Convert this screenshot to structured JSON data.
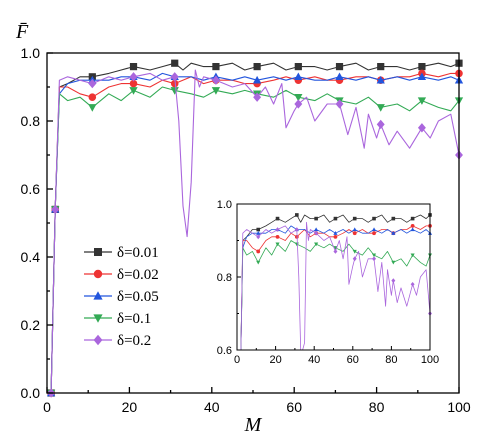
{
  "chart_data": {
    "type": "line",
    "title": "",
    "xlabel": "M",
    "ylabel": "F̄",
    "xlim": [
      0,
      100
    ],
    "ylim": [
      0.0,
      1.0
    ],
    "xticks": [
      0,
      20,
      40,
      60,
      80,
      100
    ],
    "yticks": [
      0.0,
      0.2,
      0.4,
      0.6,
      0.8,
      1.0
    ],
    "legend_position": "center-left",
    "series": [
      {
        "name": "δ=0.01",
        "color": "#333333",
        "marker": "square",
        "x": [
          1,
          2,
          3,
          5,
          8,
          11,
          15,
          18,
          21,
          25,
          28,
          31,
          33,
          35,
          38,
          41,
          45,
          48,
          51,
          55,
          58,
          61,
          65,
          68,
          71,
          75,
          78,
          81,
          85,
          88,
          91,
          95,
          98,
          100
        ],
        "y": [
          0.0,
          0.54,
          0.9,
          0.91,
          0.93,
          0.93,
          0.94,
          0.95,
          0.96,
          0.95,
          0.96,
          0.97,
          0.95,
          0.97,
          0.96,
          0.96,
          0.97,
          0.95,
          0.96,
          0.97,
          0.95,
          0.96,
          0.96,
          0.95,
          0.96,
          0.97,
          0.95,
          0.96,
          0.96,
          0.95,
          0.96,
          0.97,
          0.96,
          0.97
        ]
      },
      {
        "name": "δ=0.02",
        "color": "#ee3333",
        "marker": "circle",
        "x": [
          1,
          2,
          3,
          5,
          8,
          11,
          15,
          18,
          21,
          25,
          28,
          31,
          35,
          38,
          41,
          45,
          48,
          51,
          55,
          58,
          61,
          65,
          68,
          71,
          75,
          78,
          81,
          85,
          88,
          91,
          95,
          98,
          100
        ],
        "y": [
          0.0,
          0.54,
          0.9,
          0.9,
          0.88,
          0.87,
          0.9,
          0.91,
          0.91,
          0.9,
          0.92,
          0.91,
          0.93,
          0.91,
          0.92,
          0.92,
          0.91,
          0.91,
          0.92,
          0.93,
          0.92,
          0.93,
          0.92,
          0.92,
          0.93,
          0.93,
          0.92,
          0.93,
          0.93,
          0.94,
          0.93,
          0.94,
          0.94
        ]
      },
      {
        "name": "δ=0.05",
        "color": "#2255dd",
        "marker": "triangle-up",
        "x": [
          1,
          2,
          3,
          5,
          8,
          11,
          15,
          18,
          21,
          25,
          28,
          31,
          35,
          38,
          41,
          45,
          48,
          51,
          55,
          58,
          61,
          65,
          68,
          71,
          75,
          78,
          81,
          85,
          88,
          91,
          95,
          98,
          100
        ],
        "y": [
          0.0,
          0.54,
          0.88,
          0.91,
          0.92,
          0.92,
          0.92,
          0.93,
          0.93,
          0.92,
          0.94,
          0.93,
          0.93,
          0.92,
          0.93,
          0.92,
          0.93,
          0.92,
          0.93,
          0.92,
          0.93,
          0.92,
          0.92,
          0.93,
          0.92,
          0.93,
          0.92,
          0.93,
          0.92,
          0.93,
          0.92,
          0.93,
          0.92
        ]
      },
      {
        "name": "δ=0.1",
        "color": "#33aa55",
        "marker": "triangle-down",
        "x": [
          1,
          2,
          3,
          5,
          8,
          11,
          15,
          18,
          21,
          25,
          28,
          31,
          35,
          38,
          41,
          45,
          48,
          51,
          55,
          58,
          61,
          65,
          68,
          71,
          75,
          78,
          81,
          85,
          88,
          91,
          95,
          98,
          100
        ],
        "y": [
          0.0,
          0.54,
          0.88,
          0.86,
          0.87,
          0.84,
          0.88,
          0.86,
          0.89,
          0.87,
          0.9,
          0.89,
          0.88,
          0.87,
          0.89,
          0.88,
          0.89,
          0.88,
          0.87,
          0.89,
          0.87,
          0.86,
          0.88,
          0.86,
          0.85,
          0.87,
          0.84,
          0.85,
          0.83,
          0.86,
          0.84,
          0.83,
          0.86
        ]
      },
      {
        "name": "δ=0.2",
        "color": "#aa66dd",
        "marker": "diamond",
        "x": [
          1,
          2,
          3,
          5,
          8,
          11,
          15,
          18,
          21,
          25,
          28,
          31,
          32,
          33,
          34,
          35,
          36,
          37,
          38,
          41,
          45,
          48,
          51,
          53,
          55,
          57,
          58,
          60,
          61,
          63,
          65,
          68,
          71,
          73,
          75,
          77,
          78,
          80,
          81,
          83,
          85,
          88,
          91,
          93,
          95,
          98,
          100
        ],
        "y": [
          0.0,
          0.54,
          0.92,
          0.93,
          0.92,
          0.91,
          0.93,
          0.92,
          0.93,
          0.94,
          0.92,
          0.93,
          0.8,
          0.55,
          0.46,
          0.62,
          0.95,
          0.9,
          0.93,
          0.92,
          0.9,
          0.91,
          0.87,
          0.9,
          0.85,
          0.91,
          0.78,
          0.83,
          0.85,
          0.87,
          0.8,
          0.85,
          0.85,
          0.76,
          0.84,
          0.72,
          0.82,
          0.75,
          0.79,
          0.73,
          0.77,
          0.72,
          0.78,
          0.75,
          0.8,
          0.82,
          0.7
        ]
      }
    ],
    "inset": {
      "xlim": [
        0,
        100
      ],
      "ylim": [
        0.6,
        1.0
      ],
      "xticks": [
        0,
        20,
        40,
        60,
        80,
        100
      ],
      "yticks": [
        0.6,
        0.8,
        1.0
      ]
    }
  }
}
